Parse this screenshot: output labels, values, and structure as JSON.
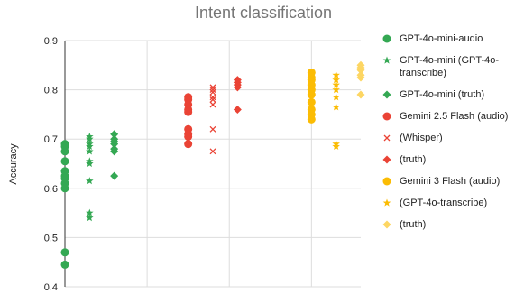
{
  "chart_data": {
    "type": "scatter",
    "title": "Intent classification",
    "y_label": "Accuracy",
    "xlim": [
      0,
      3.6
    ],
    "xticks": [
      0,
      1,
      2,
      3
    ],
    "ylim": [
      0.4,
      0.9
    ],
    "yticks": [
      0.4,
      0.5,
      0.6,
      0.7,
      0.8,
      0.9
    ],
    "grid": true,
    "legend": "right",
    "series": [
      {
        "name": "GPT-4o-mini-audio",
        "color": "#34a853",
        "marker": "circle",
        "x": [
          0,
          0,
          0,
          0,
          0,
          0,
          0,
          0,
          0,
          0,
          0
        ],
        "values": [
          0.69,
          0.685,
          0.675,
          0.655,
          0.635,
          0.625,
          0.62,
          0.61,
          0.6,
          0.47,
          0.445
        ]
      },
      {
        "name": "GPT-4o-mini (GPT-4o-transcribe)",
        "color": "#34a853",
        "marker": "star",
        "x": [
          0.3,
          0.3,
          0.3,
          0.3,
          0.3,
          0.3,
          0.3,
          0.3,
          0.3,
          0.3
        ],
        "values": [
          0.705,
          0.7,
          0.69,
          0.685,
          0.675,
          0.655,
          0.65,
          0.615,
          0.55,
          0.54
        ]
      },
      {
        "name": "GPT-4o-mini (truth)",
        "color": "#34a853",
        "marker": "diamond",
        "x": [
          0.6,
          0.6,
          0.6,
          0.6,
          0.6,
          0.6,
          0.6
        ],
        "values": [
          0.71,
          0.7,
          0.695,
          0.69,
          0.68,
          0.675,
          0.625
        ]
      },
      {
        "name": "Gemini 2.5 Flash (audio)",
        "color": "#ea4335",
        "marker": "circle",
        "x": [
          1.5,
          1.5,
          1.5,
          1.5,
          1.5,
          1.5,
          1.5,
          1.5,
          1.5
        ],
        "values": [
          0.785,
          0.78,
          0.77,
          0.76,
          0.755,
          0.72,
          0.71,
          0.705,
          0.69
        ]
      },
      {
        "name": "(Whisper)",
        "color": "#ea4335",
        "marker": "x",
        "x": [
          1.8,
          1.8,
          1.8,
          1.8,
          1.8,
          1.8,
          1.8,
          1.8
        ],
        "values": [
          0.805,
          0.8,
          0.795,
          0.785,
          0.78,
          0.77,
          0.72,
          0.675
        ]
      },
      {
        "name": "(truth)",
        "color": "#ea4335",
        "marker": "diamond",
        "x": [
          2.1,
          2.1,
          2.1,
          2.1,
          2.1
        ],
        "values": [
          0.82,
          0.815,
          0.81,
          0.805,
          0.76
        ]
      },
      {
        "name": "Gemini 3 Flash (audio)",
        "color": "#fbbc04",
        "marker": "circle",
        "x": [
          3,
          3,
          3,
          3,
          3,
          3,
          3,
          3,
          3,
          3
        ],
        "values": [
          0.835,
          0.825,
          0.82,
          0.81,
          0.8,
          0.79,
          0.775,
          0.76,
          0.75,
          0.74
        ]
      },
      {
        "name": "(GPT-4o-transcribe)",
        "color": "#fbbc04",
        "marker": "star",
        "x": [
          3.3,
          3.3,
          3.3,
          3.3,
          3.3,
          3.3,
          3.3,
          3.3
        ],
        "values": [
          0.83,
          0.82,
          0.81,
          0.8,
          0.785,
          0.765,
          0.69,
          0.685
        ]
      },
      {
        "name": "(truth)",
        "color": "#fdd663",
        "marker": "diamond",
        "x": [
          3.6,
          3.6,
          3.6,
          3.6,
          3.6,
          3.6
        ],
        "values": [
          0.85,
          0.845,
          0.84,
          0.83,
          0.825,
          0.79
        ]
      }
    ]
  }
}
